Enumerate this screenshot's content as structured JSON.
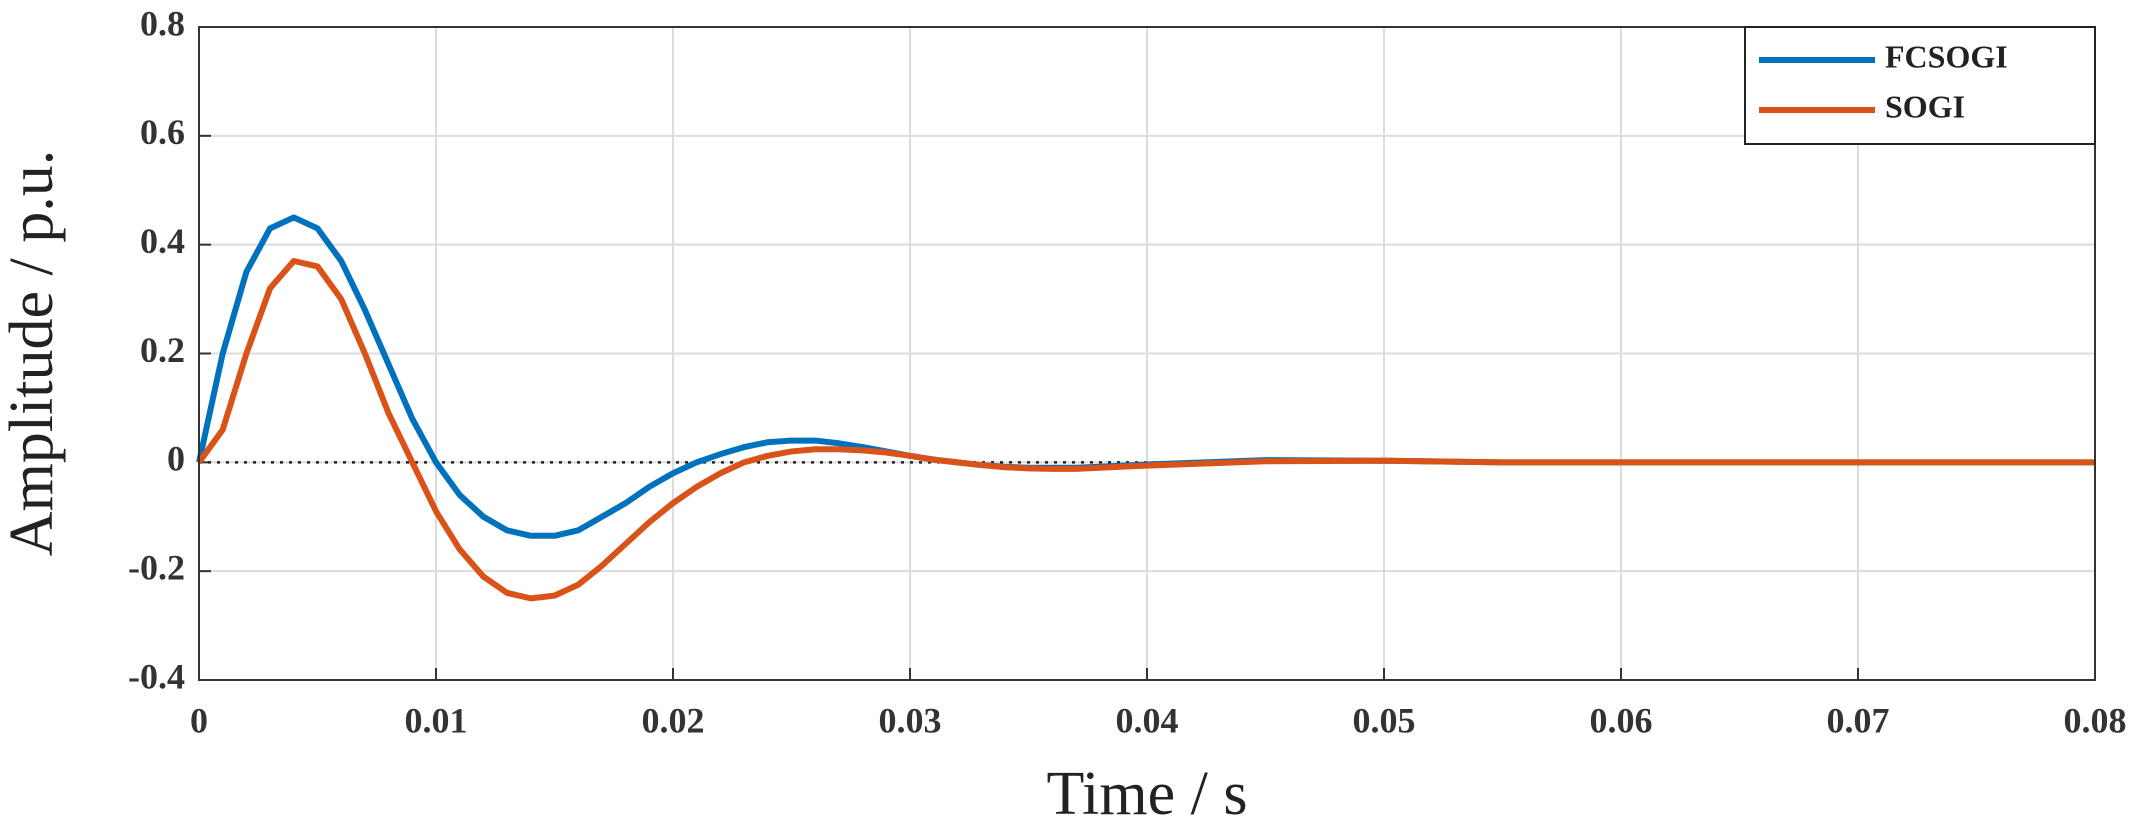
{
  "chart_data": {
    "type": "line",
    "xlabel": "Time / s",
    "ylabel": "Amplitude / p.u.",
    "x": [
      0,
      0.001,
      0.002,
      0.003,
      0.004,
      0.005,
      0.006,
      0.007,
      0.008,
      0.009,
      0.01,
      0.011,
      0.012,
      0.013,
      0.014,
      0.015,
      0.016,
      0.017,
      0.018,
      0.019,
      0.02,
      0.021,
      0.022,
      0.023,
      0.024,
      0.025,
      0.026,
      0.027,
      0.028,
      0.029,
      0.03,
      0.031,
      0.032,
      0.033,
      0.034,
      0.035,
      0.036,
      0.037,
      0.038,
      0.039,
      0.04,
      0.045,
      0.05,
      0.055,
      0.06,
      0.07,
      0.08
    ],
    "series": [
      {
        "name": "FCSOGI",
        "color": "#0072bd",
        "values": [
          0,
          0.2,
          0.35,
          0.43,
          0.45,
          0.43,
          0.37,
          0.28,
          0.18,
          0.08,
          0.0,
          -0.06,
          -0.1,
          -0.125,
          -0.135,
          -0.135,
          -0.125,
          -0.1,
          -0.075,
          -0.045,
          -0.02,
          0.0,
          0.015,
          0.028,
          0.037,
          0.04,
          0.04,
          0.035,
          0.028,
          0.02,
          0.012,
          0.005,
          0.0,
          -0.005,
          -0.008,
          -0.01,
          -0.01,
          -0.01,
          -0.008,
          -0.006,
          -0.004,
          0.004,
          0.003,
          0.0,
          0,
          0,
          0
        ]
      },
      {
        "name": "SOGI",
        "color": "#d95319",
        "values": [
          0,
          0.06,
          0.2,
          0.32,
          0.37,
          0.36,
          0.3,
          0.2,
          0.09,
          0.0,
          -0.09,
          -0.16,
          -0.21,
          -0.24,
          -0.25,
          -0.245,
          -0.225,
          -0.19,
          -0.15,
          -0.11,
          -0.075,
          -0.045,
          -0.02,
          0.0,
          0.012,
          0.02,
          0.024,
          0.024,
          0.022,
          0.018,
          0.012,
          0.005,
          0.0,
          -0.005,
          -0.009,
          -0.011,
          -0.012,
          -0.012,
          -0.01,
          -0.008,
          -0.006,
          0.002,
          0.003,
          0.0,
          0,
          0,
          0
        ]
      }
    ],
    "xlim": [
      0,
      0.08
    ],
    "xticks": [
      0,
      0.01,
      0.02,
      0.03,
      0.04,
      0.05,
      0.06,
      0.07,
      0.08
    ],
    "ylim": [
      -0.4,
      0.8
    ],
    "yticks": [
      -0.4,
      -0.2,
      0,
      0.2,
      0.4,
      0.6,
      0.8
    ],
    "hline": 0,
    "grid": true,
    "legend": "upper-right"
  }
}
